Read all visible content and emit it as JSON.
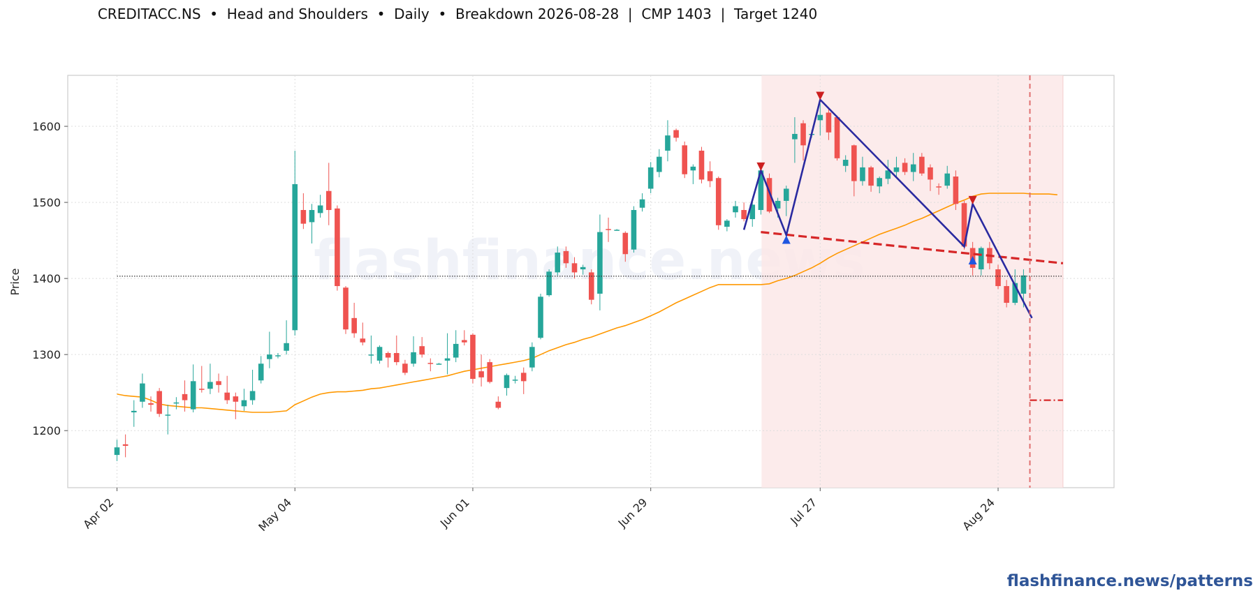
{
  "header": {
    "title": "CREDITACC.NS  •  Head and Shoulders  •  Daily  •  Breakdown 2026-08-28  |  CMP 1403  |  Target 1240"
  },
  "footer": {
    "link": "flashfinance.news/patterns"
  },
  "chart_data": {
    "type": "candlestick",
    "ylabel": "Price",
    "ylim": [
      1125,
      1667
    ],
    "y_ticks": [
      1200,
      1300,
      1400,
      1500,
      1600
    ],
    "x_ticks": [
      {
        "label": "Apr 02",
        "idx": 0
      },
      {
        "label": "May 04",
        "idx": 21
      },
      {
        "label": "Jun 01",
        "idx": 42
      },
      {
        "label": "Jun 29",
        "idx": 63
      },
      {
        "label": "Jul 27",
        "idx": 83
      },
      {
        "label": "Aug 24",
        "idx": 104
      }
    ],
    "grid": true,
    "watermark": "flashfinance.news",
    "colors": {
      "up": "#26a69a",
      "down": "#ef5350",
      "ma": "#ff9800",
      "pattern": "#2a2aa0",
      "neckline": "#d62728",
      "zone": "#fbe8e8",
      "breakdown": "#e07070",
      "hline": "#333333",
      "peak_marker": "#cc1f1f",
      "trough_marker": "#1f56e0"
    },
    "candles": [
      [
        1168,
        1178,
        1160,
        1188
      ],
      [
        1182,
        1180,
        1165,
        1195
      ],
      [
        1224,
        1226,
        1205,
        1240
      ],
      [
        1238,
        1262,
        1230,
        1275
      ],
      [
        1236,
        1234,
        1225,
        1245
      ],
      [
        1252,
        1222,
        1218,
        1256
      ],
      [
        1220,
        1221,
        1195,
        1234
      ],
      [
        1237,
        1237,
        1228,
        1244
      ],
      [
        1248,
        1240,
        1225,
        1266
      ],
      [
        1228,
        1265,
        1224,
        1287
      ],
      [
        1255,
        1254,
        1250,
        1285
      ],
      [
        1255,
        1264,
        1248,
        1288
      ],
      [
        1265,
        1260,
        1250,
        1275
      ],
      [
        1250,
        1240,
        1235,
        1272
      ],
      [
        1245,
        1238,
        1215,
        1250
      ],
      [
        1232,
        1240,
        1226,
        1255
      ],
      [
        1240,
        1252,
        1234,
        1280
      ],
      [
        1266,
        1288,
        1262,
        1298
      ],
      [
        1294,
        1300,
        1282,
        1330
      ],
      [
        1299,
        1299,
        1295,
        1302
      ],
      [
        1305,
        1315,
        1300,
        1345
      ],
      [
        1332,
        1524,
        1325,
        1568
      ],
      [
        1490,
        1472,
        1465,
        1512
      ],
      [
        1474,
        1490,
        1446,
        1498
      ],
      [
        1486,
        1496,
        1480,
        1510
      ],
      [
        1515,
        1490,
        1470,
        1552
      ],
      [
        1492,
        1390,
        1384,
        1496
      ],
      [
        1388,
        1333,
        1327,
        1390
      ],
      [
        1348,
        1328,
        1322,
        1368
      ],
      [
        1321,
        1316,
        1312,
        1342
      ],
      [
        1300,
        1300,
        1288,
        1325
      ],
      [
        1292,
        1310,
        1288,
        1312
      ],
      [
        1302,
        1296,
        1283,
        1304
      ],
      [
        1302,
        1290,
        1286,
        1325
      ],
      [
        1288,
        1276,
        1273,
        1293
      ],
      [
        1288,
        1303,
        1284,
        1324
      ],
      [
        1311,
        1300,
        1296,
        1323
      ],
      [
        1289,
        1288,
        1278,
        1295
      ],
      [
        1288,
        1288,
        1287,
        1289
      ],
      [
        1292,
        1295,
        1274,
        1328
      ],
      [
        1296,
        1314,
        1290,
        1332
      ],
      [
        1319,
        1316,
        1312,
        1332
      ],
      [
        1326,
        1268,
        1262,
        1328
      ],
      [
        1278,
        1270,
        1258,
        1300
      ],
      [
        1290,
        1264,
        1262,
        1294
      ],
      [
        1238,
        1230,
        1228,
        1245
      ],
      [
        1256,
        1273,
        1246,
        1275
      ],
      [
        1267,
        1267,
        1262,
        1272
      ],
      [
        1276,
        1265,
        1248,
        1283
      ],
      [
        1283,
        1310,
        1278,
        1316
      ],
      [
        1322,
        1376,
        1320,
        1380
      ],
      [
        1378,
        1409,
        1376,
        1412
      ],
      [
        1408,
        1434,
        1404,
        1442
      ],
      [
        1436,
        1420,
        1414,
        1442
      ],
      [
        1420,
        1408,
        1400,
        1428
      ],
      [
        1412,
        1415,
        1405,
        1418
      ],
      [
        1408,
        1372,
        1366,
        1412
      ],
      [
        1380,
        1461,
        1358,
        1484
      ],
      [
        1465,
        1464,
        1448,
        1480
      ],
      [
        1464,
        1464,
        1463,
        1465
      ],
      [
        1460,
        1432,
        1422,
        1462
      ],
      [
        1438,
        1490,
        1434,
        1495
      ],
      [
        1493,
        1504,
        1488,
        1512
      ],
      [
        1518,
        1546,
        1512,
        1553
      ],
      [
        1540,
        1560,
        1533,
        1570
      ],
      [
        1568,
        1588,
        1554,
        1608
      ],
      [
        1595,
        1585,
        1580,
        1597
      ],
      [
        1575,
        1537,
        1532,
        1580
      ],
      [
        1542,
        1547,
        1524,
        1550
      ],
      [
        1568,
        1530,
        1525,
        1573
      ],
      [
        1541,
        1528,
        1520,
        1554
      ],
      [
        1532,
        1470,
        1464,
        1534
      ],
      [
        1468,
        1476,
        1462,
        1478
      ],
      [
        1487,
        1495,
        1480,
        1502
      ],
      [
        1490,
        1478,
        1475,
        1500
      ],
      [
        1478,
        1497,
        1468,
        1502
      ],
      [
        1490,
        1542,
        1484,
        1550
      ],
      [
        1532,
        1488,
        1486,
        1538
      ],
      [
        1492,
        1502,
        1480,
        1506
      ],
      [
        1502,
        1518,
        1482,
        1522
      ],
      [
        1583,
        1590,
        1552,
        1612
      ],
      [
        1604,
        1575,
        1555,
        1608
      ],
      [
        1590,
        1590,
        1585,
        1595
      ],
      [
        1608,
        1615,
        1588,
        1630
      ],
      [
        1618,
        1592,
        1582,
        1625
      ],
      [
        1612,
        1558,
        1555,
        1614
      ],
      [
        1548,
        1556,
        1540,
        1562
      ],
      [
        1575,
        1528,
        1508,
        1576
      ],
      [
        1528,
        1546,
        1522,
        1560
      ],
      [
        1546,
        1522,
        1514,
        1548
      ],
      [
        1521,
        1532,
        1512,
        1534
      ],
      [
        1531,
        1542,
        1524,
        1556
      ],
      [
        1540,
        1546,
        1532,
        1560
      ],
      [
        1552,
        1540,
        1536,
        1558
      ],
      [
        1540,
        1550,
        1528,
        1565
      ],
      [
        1560,
        1538,
        1535,
        1565
      ],
      [
        1546,
        1530,
        1515,
        1550
      ],
      [
        1521,
        1520,
        1510,
        1525
      ],
      [
        1522,
        1538,
        1518,
        1548
      ],
      [
        1534,
        1498,
        1490,
        1542
      ],
      [
        1499,
        1442,
        1438,
        1502
      ],
      [
        1440,
        1414,
        1404,
        1448
      ],
      [
        1412,
        1440,
        1404,
        1442
      ],
      [
        1440,
        1420,
        1412,
        1448
      ],
      [
        1412,
        1390,
        1386,
        1418
      ],
      [
        1390,
        1368,
        1362,
        1398
      ],
      [
        1368,
        1394,
        1365,
        1412
      ],
      [
        1380,
        1404,
        1362,
        1412
      ]
    ],
    "moving_average": [
      [
        0,
        1248
      ],
      [
        1,
        1246
      ],
      [
        2,
        1245
      ],
      [
        3,
        1244
      ],
      [
        4,
        1240
      ],
      [
        5,
        1235
      ],
      [
        6,
        1233
      ],
      [
        7,
        1232
      ],
      [
        8,
        1231
      ],
      [
        9,
        1230
      ],
      [
        10,
        1230
      ],
      [
        11,
        1229
      ],
      [
        12,
        1228
      ],
      [
        13,
        1227
      ],
      [
        14,
        1226
      ],
      [
        15,
        1225
      ],
      [
        16,
        1224
      ],
      [
        17,
        1224
      ],
      [
        18,
        1224
      ],
      [
        19,
        1225
      ],
      [
        20,
        1226
      ],
      [
        21,
        1234
      ],
      [
        22,
        1239
      ],
      [
        23,
        1244
      ],
      [
        24,
        1248
      ],
      [
        25,
        1250
      ],
      [
        26,
        1251
      ],
      [
        27,
        1251
      ],
      [
        28,
        1252
      ],
      [
        29,
        1253
      ],
      [
        30,
        1255
      ],
      [
        31,
        1256
      ],
      [
        32,
        1258
      ],
      [
        33,
        1260
      ],
      [
        34,
        1262
      ],
      [
        35,
        1264
      ],
      [
        36,
        1266
      ],
      [
        37,
        1268
      ],
      [
        38,
        1270
      ],
      [
        39,
        1272
      ],
      [
        40,
        1275
      ],
      [
        41,
        1278
      ],
      [
        42,
        1280
      ],
      [
        43,
        1282
      ],
      [
        44,
        1284
      ],
      [
        45,
        1286
      ],
      [
        46,
        1288
      ],
      [
        47,
        1290
      ],
      [
        48,
        1292
      ],
      [
        49,
        1295
      ],
      [
        50,
        1300
      ],
      [
        51,
        1305
      ],
      [
        52,
        1309
      ],
      [
        53,
        1313
      ],
      [
        54,
        1316
      ],
      [
        55,
        1320
      ],
      [
        56,
        1323
      ],
      [
        57,
        1327
      ],
      [
        58,
        1331
      ],
      [
        59,
        1335
      ],
      [
        60,
        1338
      ],
      [
        61,
        1342
      ],
      [
        62,
        1346
      ],
      [
        63,
        1351
      ],
      [
        64,
        1356
      ],
      [
        65,
        1362
      ],
      [
        66,
        1368
      ],
      [
        67,
        1373
      ],
      [
        68,
        1378
      ],
      [
        69,
        1383
      ],
      [
        70,
        1388
      ],
      [
        71,
        1392
      ],
      [
        72,
        1392
      ],
      [
        73,
        1392
      ],
      [
        74,
        1392
      ],
      [
        75,
        1392
      ],
      [
        76,
        1392
      ],
      [
        77,
        1393
      ],
      [
        78,
        1397
      ],
      [
        79,
        1400
      ],
      [
        80,
        1404
      ],
      [
        81,
        1409
      ],
      [
        82,
        1414
      ],
      [
        83,
        1420
      ],
      [
        84,
        1427
      ],
      [
        85,
        1433
      ],
      [
        86,
        1438
      ],
      [
        87,
        1443
      ],
      [
        88,
        1448
      ],
      [
        89,
        1453
      ],
      [
        90,
        1458
      ],
      [
        91,
        1462
      ],
      [
        92,
        1466
      ],
      [
        93,
        1470
      ],
      [
        94,
        1475
      ],
      [
        95,
        1479
      ],
      [
        96,
        1484
      ],
      [
        97,
        1489
      ],
      [
        98,
        1494
      ],
      [
        99,
        1499
      ],
      [
        100,
        1503
      ],
      [
        101,
        1508
      ],
      [
        102,
        1511
      ],
      [
        103,
        1512
      ],
      [
        104,
        1512
      ],
      [
        105,
        1512
      ],
      [
        106,
        1512
      ],
      [
        107,
        1512
      ],
      [
        108,
        1511
      ],
      [
        109,
        1511
      ],
      [
        110,
        1511
      ],
      [
        111,
        1510
      ]
    ],
    "pattern": {
      "name": "Head and Shoulders",
      "zigzag": [
        [
          74,
          1464
        ],
        [
          76,
          1542
        ],
        [
          79,
          1457
        ],
        [
          83,
          1635
        ],
        [
          100,
          1442
        ],
        [
          101,
          1498
        ],
        [
          108,
          1348
        ]
      ],
      "peaks": [
        [
          76,
          1547
        ],
        [
          83,
          1640
        ],
        [
          101,
          1503
        ]
      ],
      "troughs": [
        [
          79,
          1451
        ],
        [
          101,
          1424
        ]
      ],
      "neckline": [
        [
          76,
          1461
        ],
        [
          111,
          1420
        ]
      ],
      "zone": [
        76,
        111
      ],
      "breakdown_idx": 108,
      "target": 1240,
      "target_x": [
        108,
        111
      ],
      "cmp": 1403
    }
  }
}
